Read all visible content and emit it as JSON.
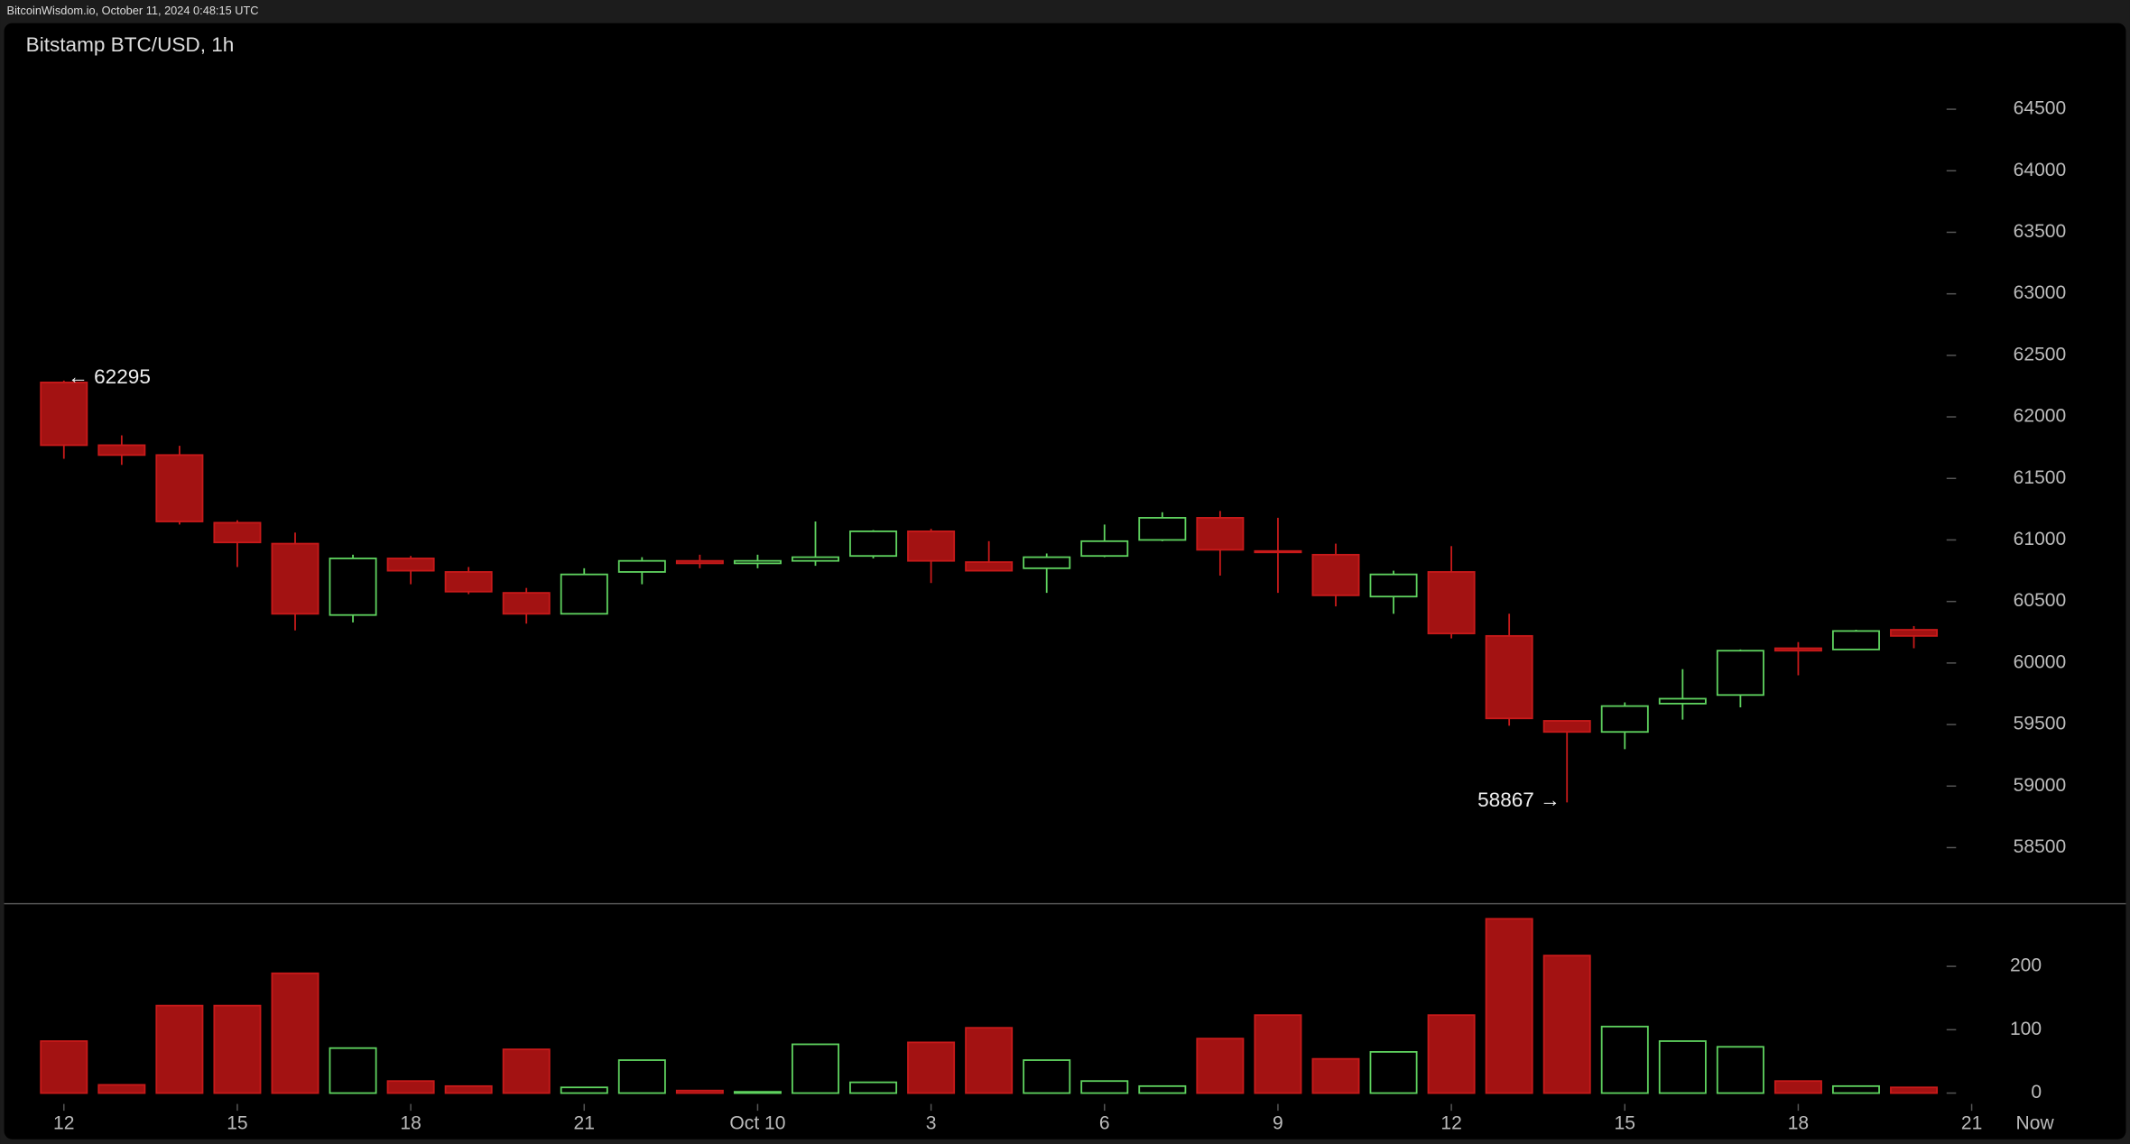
{
  "header": "BitcoinWisdom.io, October 11, 2024 0:48:15 UTC",
  "chart_data": {
    "type": "candlestick",
    "title": "Bitstamp BTC/USD, 1h",
    "up_color": "#5fd35f",
    "down_color": "#a31212",
    "open": [
      62280,
      61770,
      61690,
      61140,
      60970,
      60390,
      60850,
      60740,
      60570,
      60400,
      60740,
      60830,
      60810,
      60830,
      60870,
      61070,
      60820,
      60770,
      60870,
      61000,
      61180,
      60910,
      60880,
      60540,
      60740,
      60220,
      59530,
      59440,
      59670,
      59740,
      60120,
      60110,
      60270
    ],
    "high": [
      62295,
      61850,
      61765,
      61160,
      61060,
      60880,
      60870,
      60780,
      60610,
      60770,
      60860,
      60880,
      60880,
      61150,
      61080,
      61090,
      60990,
      60890,
      61125,
      61225,
      61235,
      61180,
      60970,
      60750,
      60950,
      60400,
      59530,
      59680,
      59950,
      60110,
      60170,
      60270,
      60300
    ],
    "low": [
      61660,
      61610,
      61125,
      60780,
      60265,
      60330,
      60640,
      60560,
      60320,
      60400,
      60640,
      60770,
      60770,
      60790,
      60850,
      60650,
      60750,
      60570,
      60860,
      60990,
      60710,
      60570,
      60460,
      60400,
      60200,
      59490,
      58867,
      59300,
      59540,
      59640,
      59900,
      60110,
      60120
    ],
    "close": [
      61770,
      61690,
      61150,
      60980,
      60400,
      60850,
      60750,
      60580,
      60400,
      60720,
      60830,
      60810,
      60830,
      60860,
      61070,
      60830,
      60750,
      60860,
      60990,
      61180,
      60920,
      60900,
      60550,
      60720,
      60240,
      59550,
      59440,
      59650,
      59710,
      60100,
      60100,
      60260,
      60220
    ],
    "volume": [
      82,
      13,
      138,
      138,
      189,
      71,
      19,
      11,
      69,
      9,
      52,
      4,
      2,
      77,
      17,
      80,
      103,
      52,
      19,
      11,
      86,
      123,
      54,
      65,
      123,
      275,
      217,
      105,
      82,
      73,
      19,
      11,
      9
    ],
    "ylim": [
      58050,
      65200
    ],
    "yticks": [
      58500,
      59000,
      59500,
      60000,
      60500,
      61000,
      61500,
      62000,
      62500,
      63000,
      63500,
      64000,
      64500
    ],
    "volume_ylim": [
      0,
      300
    ],
    "volume_yticks": [
      0,
      100,
      200
    ],
    "xlim": [
      -0.5,
      34.5
    ],
    "xticks": [
      {
        "value": 0,
        "label": "12"
      },
      {
        "value": 3,
        "label": "15"
      },
      {
        "value": 6,
        "label": "18"
      },
      {
        "value": 9,
        "label": "21"
      },
      {
        "value": 12,
        "label": "Oct 10"
      },
      {
        "value": 15,
        "label": "3"
      },
      {
        "value": 18,
        "label": "6"
      },
      {
        "value": 21,
        "label": "9"
      },
      {
        "value": 24,
        "label": "12"
      },
      {
        "value": 27,
        "label": "15"
      },
      {
        "value": 30,
        "label": "18"
      },
      {
        "value": 33,
        "label": "21"
      }
    ],
    "now_label": "Now",
    "annotations": [
      {
        "text": "← 62295",
        "value": 62295
      },
      {
        "text": "58867 →",
        "value": 58867
      }
    ]
  }
}
